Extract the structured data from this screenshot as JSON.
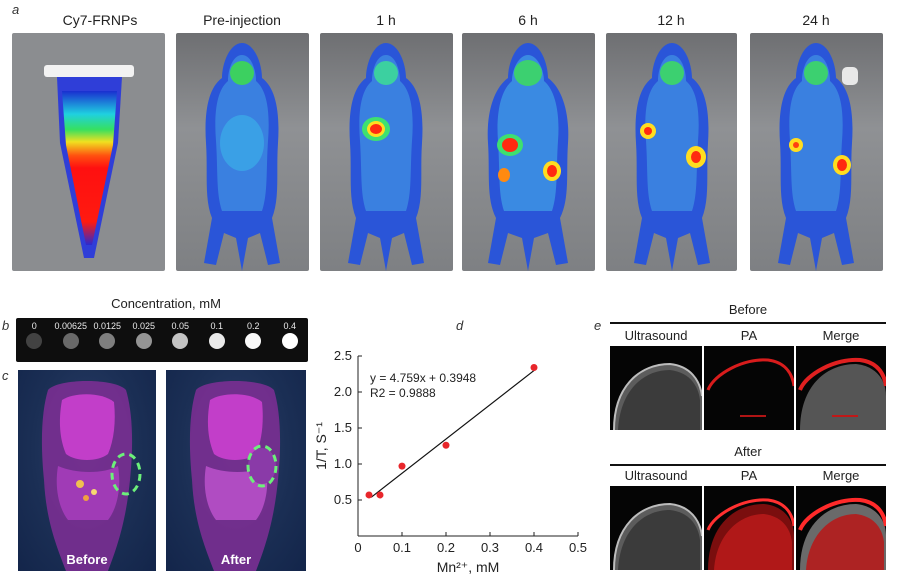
{
  "panel_labels": {
    "a": "a",
    "b": "b",
    "c": "c",
    "d": "d",
    "e": "e"
  },
  "panel_a": {
    "labels": [
      "Cy7-FRNPs",
      "Pre-injection",
      "1 h",
      "6 h",
      "12 h",
      "24 h"
    ]
  },
  "panel_b": {
    "title": "Concentration, mM",
    "concentrations": [
      "0",
      "0.00625",
      "0.0125",
      "0.025",
      "0.05",
      "0.1",
      "0.2",
      "0.4"
    ],
    "intensities": [
      0.12,
      0.3,
      0.4,
      0.5,
      0.72,
      0.9,
      0.97,
      1.0
    ]
  },
  "panel_c": {
    "captions": [
      "Before",
      "After"
    ]
  },
  "panel_e": {
    "groups": [
      {
        "title": "Before",
        "columns": [
          "Ultrasound",
          "PA",
          "Merge"
        ]
      },
      {
        "title": "After",
        "columns": [
          "Ultrasound",
          "PA",
          "Merge"
        ]
      }
    ]
  },
  "chart_data": {
    "type": "scatter",
    "title": "",
    "xlabel": "Mn²⁺, mM",
    "ylabel": "1/T, S⁻¹",
    "xlim": [
      0,
      0.5
    ],
    "ylim": [
      0,
      2.5
    ],
    "x_ticks": [
      "0",
      "0.1",
      "0.2",
      "0.3",
      "0.4",
      "0.5"
    ],
    "y_ticks": [
      "0.5",
      "1.0",
      "1.5",
      "2.0",
      "2.5"
    ],
    "points": [
      {
        "x": 0.025,
        "y": 0.57
      },
      {
        "x": 0.05,
        "y": 0.57
      },
      {
        "x": 0.1,
        "y": 0.97
      },
      {
        "x": 0.2,
        "y": 1.26
      },
      {
        "x": 0.4,
        "y": 2.34
      }
    ],
    "fit": {
      "slope": 4.759,
      "intercept": 0.3948
    },
    "equation": "y = 4.759x + 0.3948",
    "r2_text": "R2 = 0.9888",
    "point_color": "#e8262b",
    "grid": false
  }
}
